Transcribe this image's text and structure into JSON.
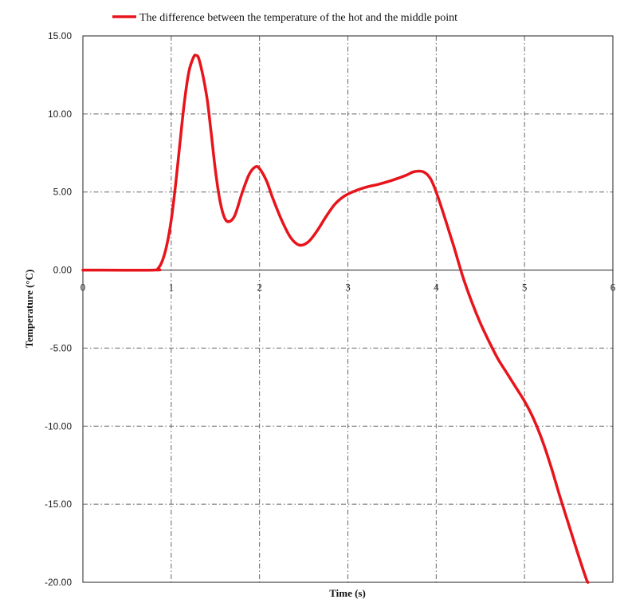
{
  "chart_data": {
    "type": "line",
    "title": "",
    "xlabel": "Time (s)",
    "ylabel": "Temperature (°C)",
    "xlim": [
      0,
      6
    ],
    "ylim": [
      -20,
      15
    ],
    "x_ticks": [
      "0",
      "1",
      "2",
      "3",
      "4",
      "5",
      "6"
    ],
    "y_ticks": [
      "15.00",
      "10.00",
      "5.00",
      "0.00",
      "-5.00",
      "-10.00",
      "-15.00",
      "-20.00"
    ],
    "grid": true,
    "legend_position": "top",
    "series": [
      {
        "name": "The difference between the temperature of the hot and the middle point",
        "color": "#e8141b",
        "points": [
          [
            0,
            0
          ],
          [
            0.8,
            0
          ],
          [
            0.85,
            0.1
          ],
          [
            0.9,
            0.6
          ],
          [
            0.95,
            1.6
          ],
          [
            1.0,
            3.2
          ],
          [
            1.05,
            5.5
          ],
          [
            1.1,
            8.2
          ],
          [
            1.15,
            10.8
          ],
          [
            1.2,
            12.7
          ],
          [
            1.25,
            13.6
          ],
          [
            1.28,
            13.75
          ],
          [
            1.32,
            13.4
          ],
          [
            1.4,
            11.2
          ],
          [
            1.45,
            8.9
          ],
          [
            1.5,
            6.4
          ],
          [
            1.55,
            4.5
          ],
          [
            1.6,
            3.4
          ],
          [
            1.65,
            3.1
          ],
          [
            1.72,
            3.5
          ],
          [
            1.8,
            4.9
          ],
          [
            1.88,
            6.1
          ],
          [
            1.95,
            6.6
          ],
          [
            2.0,
            6.5
          ],
          [
            2.08,
            5.7
          ],
          [
            2.15,
            4.6
          ],
          [
            2.25,
            3.2
          ],
          [
            2.35,
            2.1
          ],
          [
            2.45,
            1.6
          ],
          [
            2.55,
            1.8
          ],
          [
            2.65,
            2.5
          ],
          [
            2.75,
            3.4
          ],
          [
            2.85,
            4.2
          ],
          [
            2.95,
            4.7
          ],
          [
            3.05,
            5.0
          ],
          [
            3.2,
            5.3
          ],
          [
            3.35,
            5.5
          ],
          [
            3.5,
            5.75
          ],
          [
            3.65,
            6.05
          ],
          [
            3.75,
            6.3
          ],
          [
            3.85,
            6.3
          ],
          [
            3.93,
            5.9
          ],
          [
            4.0,
            5.0
          ],
          [
            4.1,
            3.3
          ],
          [
            4.2,
            1.5
          ],
          [
            4.3,
            -0.4
          ],
          [
            4.4,
            -2.0
          ],
          [
            4.5,
            -3.4
          ],
          [
            4.6,
            -4.6
          ],
          [
            4.7,
            -5.7
          ],
          [
            4.8,
            -6.6
          ],
          [
            4.9,
            -7.5
          ],
          [
            5.0,
            -8.4
          ],
          [
            5.1,
            -9.5
          ],
          [
            5.2,
            -10.9
          ],
          [
            5.3,
            -12.6
          ],
          [
            5.4,
            -14.5
          ],
          [
            5.5,
            -16.3
          ],
          [
            5.6,
            -18.1
          ],
          [
            5.7,
            -19.8
          ],
          [
            5.72,
            -20.0
          ]
        ]
      }
    ]
  }
}
